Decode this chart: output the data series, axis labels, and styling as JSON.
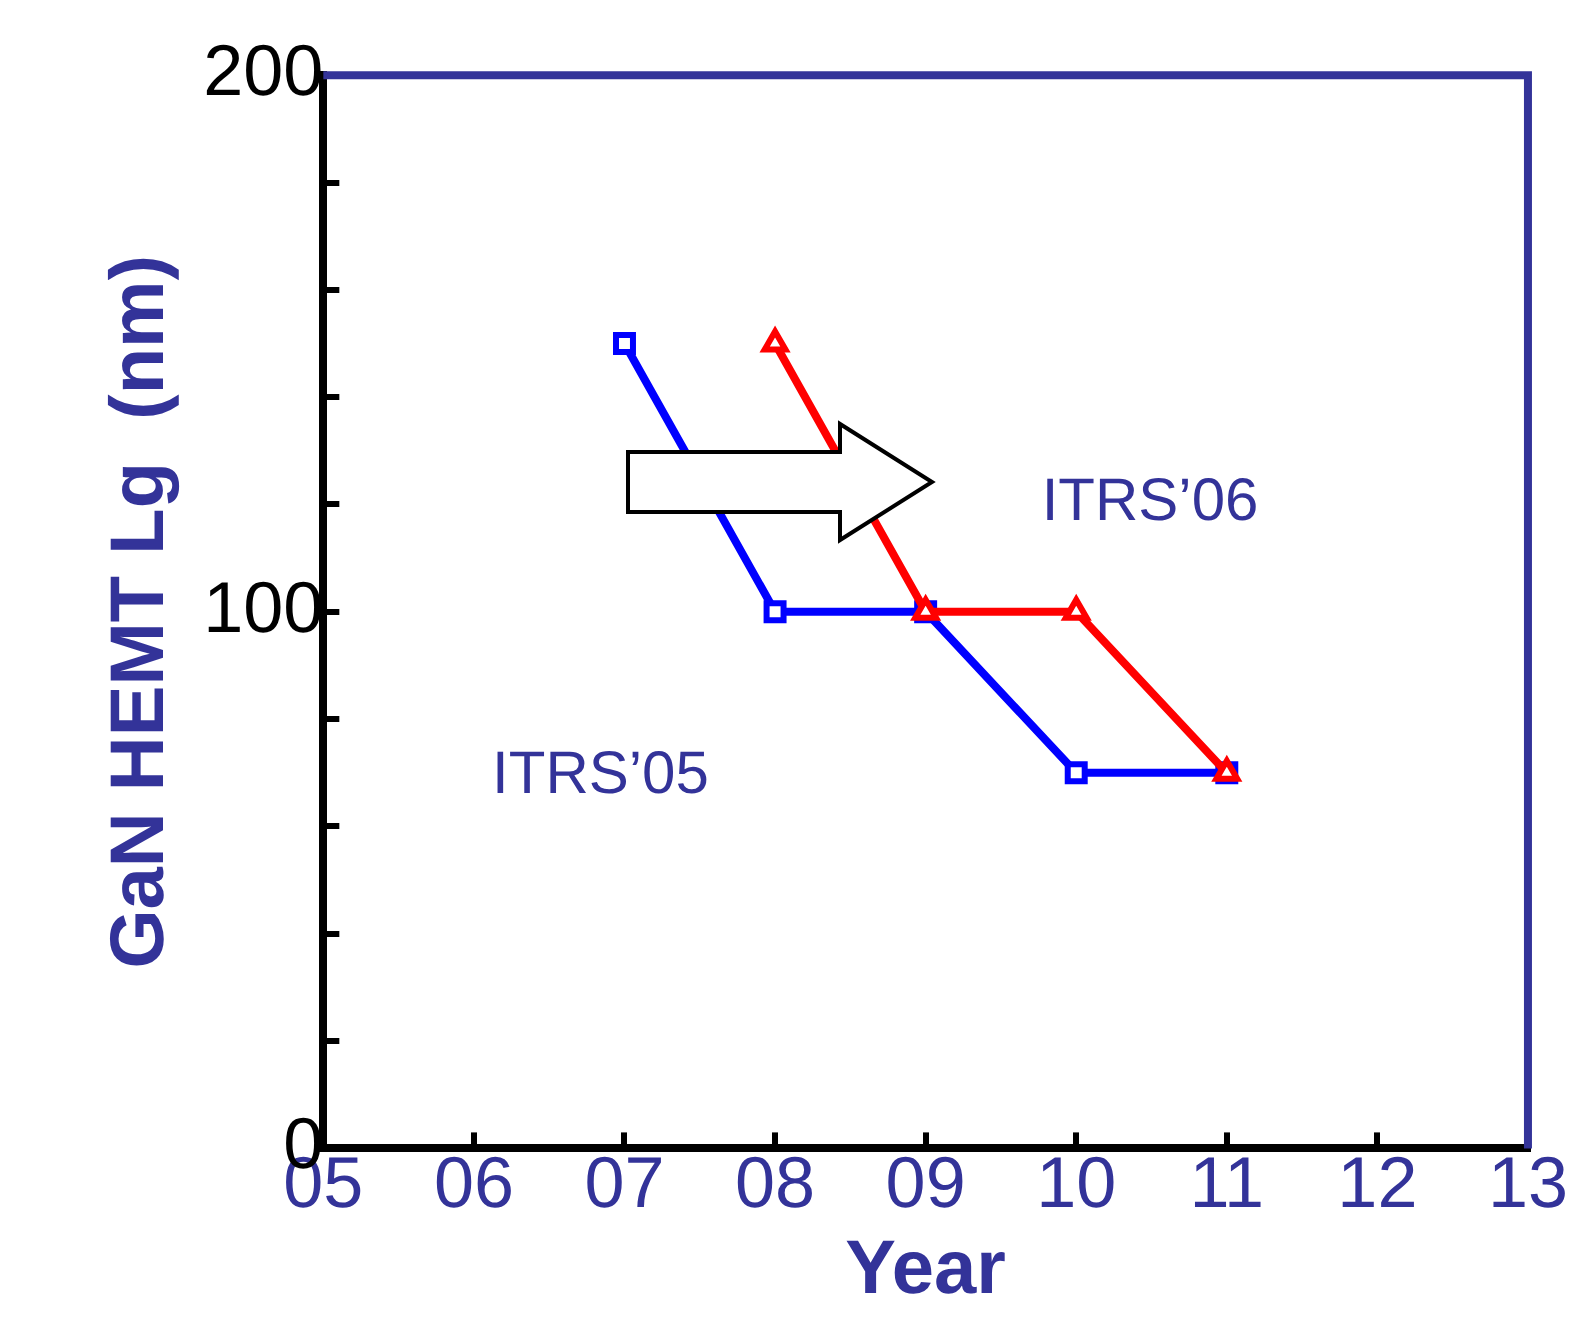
{
  "chart_data": {
    "type": "line",
    "xlabel": "Year",
    "ylabel": "GaN HEMT Lg  (nm)",
    "xlim": [
      5,
      13
    ],
    "xticks": [
      {
        "value": 5,
        "label": "05"
      },
      {
        "value": 6,
        "label": "06"
      },
      {
        "value": 7,
        "label": "07"
      },
      {
        "value": 8,
        "label": "08"
      },
      {
        "value": 9,
        "label": "09"
      },
      {
        "value": 10,
        "label": "10"
      },
      {
        "value": 11,
        "label": "11"
      },
      {
        "value": 12,
        "label": "12"
      },
      {
        "value": 13,
        "label": "13"
      }
    ],
    "ylim": [
      0,
      200
    ],
    "yticks": [
      0,
      {
        "value": 20,
        "label": null
      },
      {
        "value": 40,
        "label": null
      },
      {
        "value": 60,
        "label": null
      },
      {
        "value": 80,
        "label": null
      },
      100,
      {
        "value": 120,
        "label": null
      },
      {
        "value": 140,
        "label": null
      },
      {
        "value": 160,
        "label": null
      },
      {
        "value": 180,
        "label": null
      },
      200
    ],
    "grid": false,
    "legend": false,
    "line_style": "solid",
    "series": [
      {
        "name": "ITRS’05",
        "color": "#0000ff",
        "marker": "square",
        "x": [
          7,
          8,
          9,
          10,
          11
        ],
        "values": [
          150,
          100,
          100,
          70,
          70
        ]
      },
      {
        "name": "ITRS’06",
        "color": "#ff0000",
        "marker": "triangle",
        "x": [
          8,
          9,
          10,
          11
        ],
        "values": [
          150,
          100,
          100,
          70
        ]
      }
    ]
  }
}
